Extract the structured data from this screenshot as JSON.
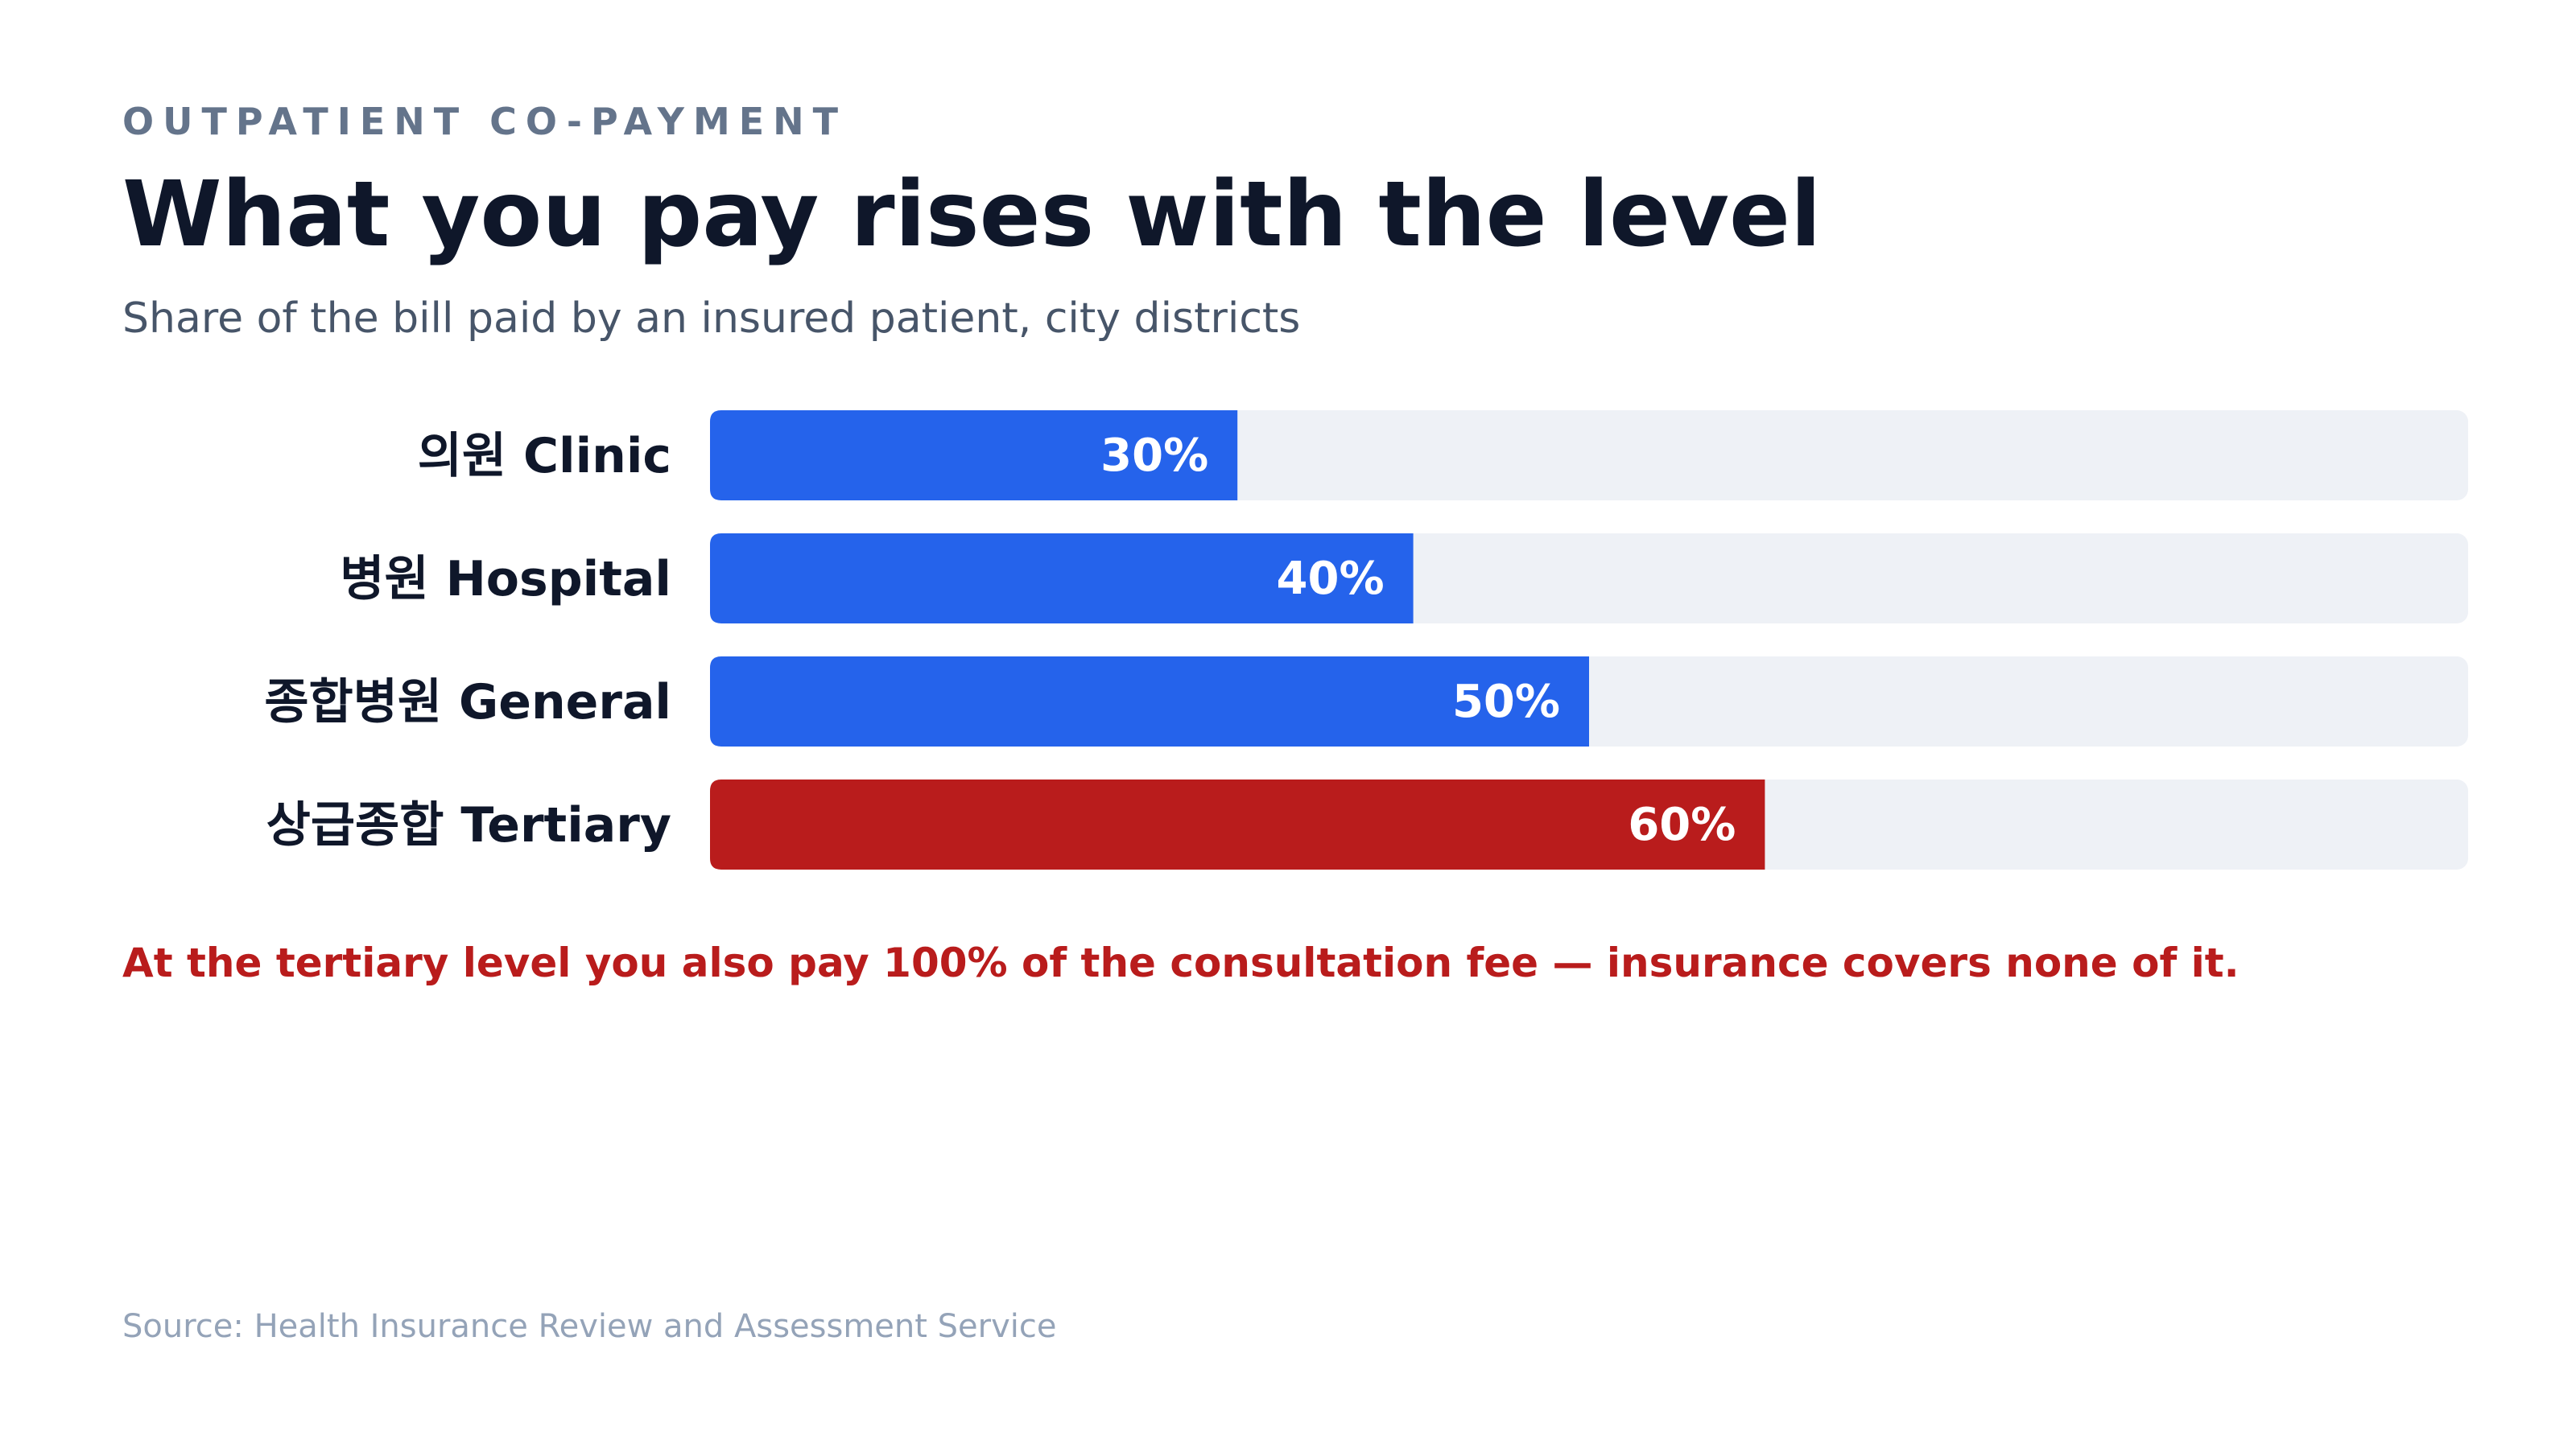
{
  "header": {
    "eyebrow": "OUTPATIENT CO-PAYMENT",
    "title": "What you pay rises with the level",
    "subtitle": "Share of the bill paid by an insured patient, city districts"
  },
  "note": "At the tertiary level you also pay 100% of the consultation fee — insurance covers none of it.",
  "source": "Source: Health Insurance Review and Assessment Service",
  "colors": {
    "bar_default": "#2563eb",
    "bar_highlight": "#b91c1c",
    "track": "#eef1f6",
    "label": "#0f172a",
    "value_label": "#ffffff"
  },
  "chart_data": {
    "type": "bar",
    "orientation": "horizontal",
    "categories": [
      "의원 Clinic",
      "병원 Hospital",
      "종합병원 General",
      "상급종합 Tertiary"
    ],
    "values": [
      30,
      40,
      50,
      60
    ],
    "value_labels": [
      "30%",
      "40%",
      "50%",
      "60%"
    ],
    "highlight_index": 3,
    "xlim": [
      0,
      100
    ],
    "grid": false,
    "legend": "none"
  }
}
